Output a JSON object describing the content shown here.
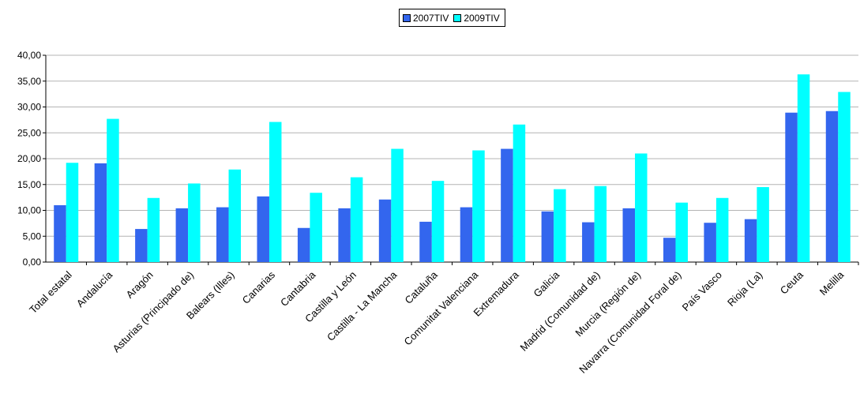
{
  "chart_data": {
    "type": "bar",
    "title": "",
    "xlabel": "",
    "ylabel": "",
    "ylim": [
      0,
      40
    ],
    "yticks": [
      "0,00",
      "5,00",
      "10,00",
      "15,00",
      "20,00",
      "25,00",
      "30,00",
      "35,00",
      "40,00"
    ],
    "grid": true,
    "legend_position": "top-center",
    "categories": [
      "Total estatal",
      "Andalucía",
      "Aragón",
      "Asturias (Principado de)",
      "Balears (Illes)",
      "Canarias",
      "Cantabria",
      "Castilla y León",
      "Castilla - La Mancha",
      "Cataluña",
      "Comunitat Valenciana",
      "Extremadura",
      "Galicia",
      "Madrid (Comunidad de)",
      "Murcia (Región de)",
      "Navarra (Comunidad Foral de)",
      "País Vasco",
      "Rioja (La)",
      "Ceuta",
      "Melilla"
    ],
    "series": [
      {
        "name": "2007TIV",
        "color": "#3366ee",
        "values": [
          11.0,
          19.1,
          6.4,
          10.4,
          10.6,
          12.7,
          6.6,
          10.4,
          12.1,
          7.8,
          10.6,
          21.9,
          9.8,
          7.7,
          10.4,
          4.7,
          7.6,
          8.3,
          28.9,
          29.2
        ]
      },
      {
        "name": "2009TIV",
        "color": "#00ffff",
        "values": [
          19.2,
          27.7,
          12.4,
          15.2,
          17.9,
          27.1,
          13.4,
          16.4,
          21.9,
          15.7,
          21.6,
          26.6,
          14.1,
          14.7,
          21.0,
          11.5,
          12.4,
          14.5,
          36.3,
          32.9
        ]
      }
    ]
  }
}
